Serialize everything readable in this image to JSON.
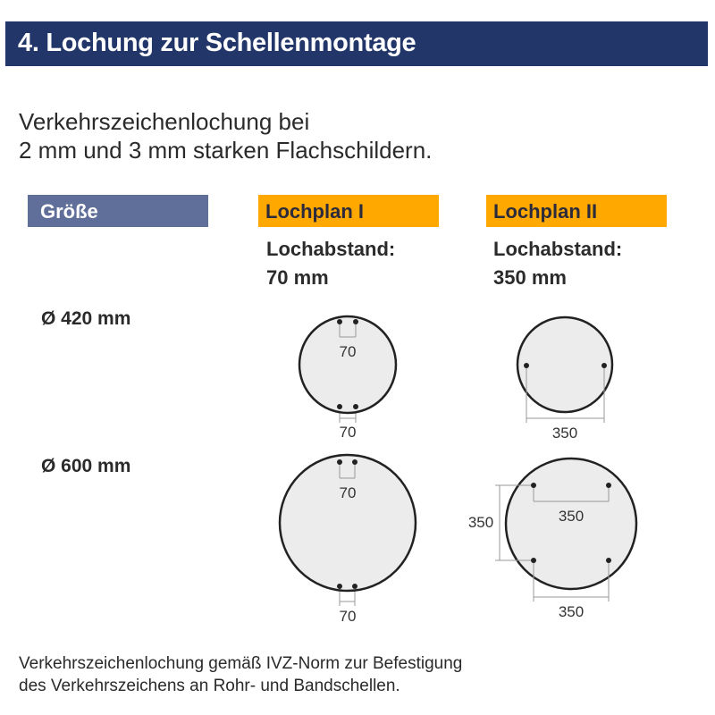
{
  "header": {
    "title": "4. Lochung zur Schellenmontage"
  },
  "intro": {
    "line1": "Verkehrszeichenlochung bei",
    "line2": "2 mm und 3 mm starken Flachschildern."
  },
  "columns": {
    "size": "Größe",
    "plan1": {
      "label": "Lochplan I",
      "spacing_label": "Lochabstand:",
      "spacing_value": "70 mm"
    },
    "plan2": {
      "label": "Lochplan II",
      "spacing_label": "Lochabstand:",
      "spacing_value": "350 mm"
    }
  },
  "rows": [
    {
      "size": "Ø 420 mm",
      "plan1_dims": [
        "70",
        "70"
      ],
      "plan2_dims": [
        "350"
      ]
    },
    {
      "size": "Ø 600 mm",
      "plan1_dims": [
        "70",
        "70"
      ],
      "plan2_dims": [
        "350",
        "350",
        "350"
      ]
    }
  ],
  "colors": {
    "header": "#22366a",
    "size_tag": "#5f6f99",
    "plan_tag": "#ffa800",
    "plate_fill": "#ebebeb"
  },
  "footer": {
    "line1": "Verkehrszeichenlochung gemäß IVZ-Norm zur Befestigung",
    "line2": "des Verkehrszeichens an Rohr- und Bandschellen."
  }
}
